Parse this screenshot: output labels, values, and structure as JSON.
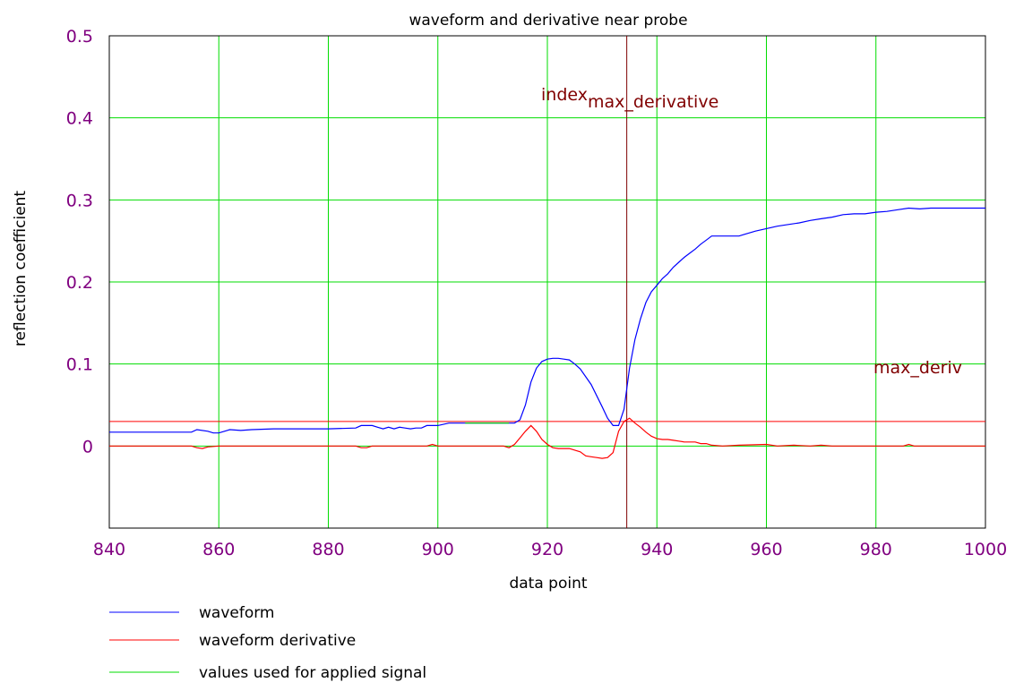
{
  "chart_data": {
    "type": "line",
    "title": "waveform and derivative near probe",
    "xlabel": "data point",
    "ylabel": "reflection coefficient",
    "xlim": [
      840,
      1000
    ],
    "ylim": [
      -0.1,
      0.5
    ],
    "xticks": [
      "840",
      "860",
      "880",
      "900",
      "920",
      "940",
      "960",
      "980",
      "1000"
    ],
    "yticks": [
      "0",
      "0.1",
      "0.2",
      "0.3",
      "0.4",
      "0.5"
    ],
    "grid": true,
    "legend_position": "bottom-left",
    "series": [
      {
        "name": "waveform",
        "color": "#0000ff",
        "x": [
          840,
          855,
          856,
          858,
          859,
          860,
          862,
          864,
          866,
          870,
          880,
          885,
          886,
          887,
          888,
          889,
          890,
          891,
          892,
          893,
          894,
          895,
          896,
          897,
          898,
          899,
          900,
          902,
          905,
          910,
          914,
          915,
          916,
          917,
          918,
          919,
          920,
          921,
          922,
          923,
          924,
          925,
          926,
          928,
          930,
          931,
          932,
          933,
          934,
          935,
          936,
          937,
          938,
          939,
          940,
          941,
          942,
          943,
          944,
          945,
          946,
          947,
          948,
          949,
          950,
          952,
          954,
          955,
          956,
          958,
          960,
          962,
          964,
          966,
          968,
          970,
          972,
          974,
          976,
          978,
          980,
          982,
          984,
          986,
          988,
          990,
          992,
          994,
          996,
          998,
          1000
        ],
        "y": [
          0.017,
          0.017,
          0.02,
          0.018,
          0.016,
          0.016,
          0.02,
          0.019,
          0.02,
          0.021,
          0.021,
          0.022,
          0.025,
          0.025,
          0.025,
          0.023,
          0.021,
          0.023,
          0.021,
          0.023,
          0.022,
          0.021,
          0.022,
          0.022,
          0.025,
          0.025,
          0.025,
          0.028,
          0.028,
          0.028,
          0.028,
          0.032,
          0.05,
          0.078,
          0.095,
          0.103,
          0.106,
          0.107,
          0.107,
          0.106,
          0.105,
          0.1,
          0.094,
          0.075,
          0.048,
          0.034,
          0.025,
          0.025,
          0.045,
          0.095,
          0.13,
          0.155,
          0.175,
          0.188,
          0.196,
          0.204,
          0.21,
          0.218,
          0.224,
          0.23,
          0.235,
          0.24,
          0.246,
          0.251,
          0.256,
          0.256,
          0.256,
          0.256,
          0.258,
          0.262,
          0.265,
          0.268,
          0.27,
          0.272,
          0.275,
          0.277,
          0.279,
          0.282,
          0.283,
          0.283,
          0.285,
          0.286,
          0.288,
          0.29,
          0.289,
          0.29,
          0.29,
          0.29,
          0.29,
          0.29,
          0.29
        ]
      },
      {
        "name": "waveform derivative",
        "color": "#ff0000",
        "x": [
          840,
          855,
          856,
          857,
          858,
          860,
          870,
          885,
          886,
          887,
          888,
          890,
          895,
          898,
          899,
          900,
          905,
          912,
          913,
          914,
          915,
          916,
          917,
          918,
          919,
          920,
          921,
          922,
          923,
          924,
          925,
          926,
          927,
          928,
          929,
          930,
          931,
          932,
          933,
          934,
          935,
          936,
          937,
          938,
          939,
          940,
          941,
          942,
          943,
          944,
          945,
          946,
          947,
          948,
          949,
          950,
          952,
          955,
          960,
          962,
          965,
          968,
          970,
          972,
          975,
          980,
          985,
          986,
          987,
          990,
          1000
        ],
        "y": [
          0.0,
          0.0,
          -0.002,
          -0.003,
          -0.001,
          0.0,
          0.0,
          0.0,
          -0.002,
          -0.002,
          0.0,
          0.0,
          0.0,
          0.0,
          0.002,
          0.0,
          0.0,
          0.0,
          -0.002,
          0.002,
          0.01,
          0.018,
          0.025,
          0.018,
          0.008,
          0.002,
          -0.002,
          -0.003,
          -0.003,
          -0.003,
          -0.005,
          -0.007,
          -0.012,
          -0.013,
          -0.014,
          -0.015,
          -0.014,
          -0.008,
          0.018,
          0.03,
          0.034,
          0.028,
          0.023,
          0.017,
          0.012,
          0.009,
          0.008,
          0.008,
          0.007,
          0.006,
          0.005,
          0.005,
          0.005,
          0.003,
          0.003,
          0.001,
          0.0,
          0.001,
          0.002,
          0.0,
          0.001,
          0.0,
          0.001,
          0.0,
          0.0,
          0.0,
          0.0,
          0.002,
          0.0,
          0.0,
          0.0
        ]
      },
      {
        "name": "values used for applied signal",
        "color": "#00dd00",
        "x": [
          905,
          913
        ],
        "y": [
          0.028,
          0.028
        ]
      }
    ],
    "reference_lines": {
      "horizontal_value": 0.03,
      "horizontal_color": "#ff0000",
      "vertical_value": 934.5,
      "vertical_color": "#800000"
    },
    "annotations": {
      "index_main": "index",
      "index_sub": "max_derivative",
      "max_deriv": "max_deriv"
    }
  }
}
